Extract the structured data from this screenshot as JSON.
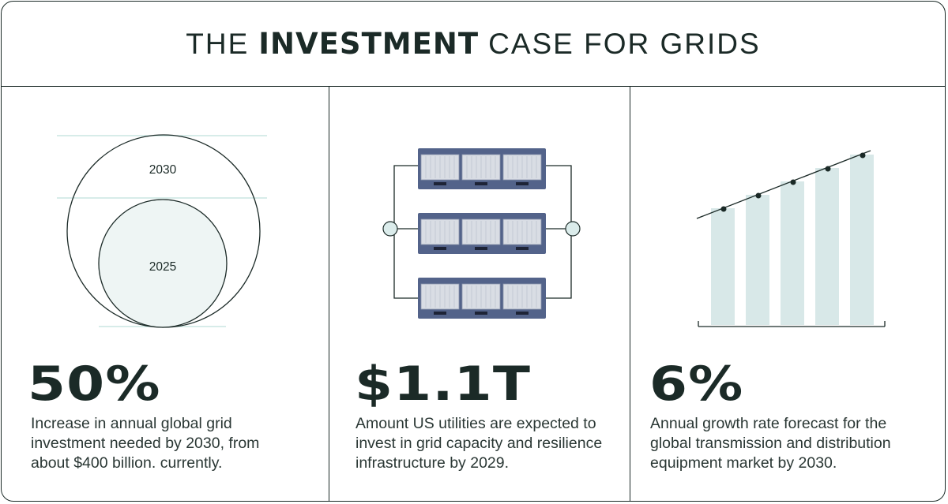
{
  "title": {
    "prefix": "THE",
    "emphasis": "INVESTMENT",
    "suffix": "CASE FOR GRIDS"
  },
  "panels": [
    {
      "stat": "50%",
      "caption": "Increase in annual global grid investment needed by 2030, from about $400 billion. currently.",
      "graphic": {
        "outer_label": "2030",
        "inner_label": "2025"
      }
    },
    {
      "stat": "$1.1T",
      "caption": "Amount US utilities are expected to invest in grid capacity and resilience infrastructure by 2029.",
      "graphic": {
        "rows": 3,
        "units_per_row": 3
      }
    },
    {
      "stat": "6%",
      "caption": "Annual growth rate forecast for the global transmission and distribution equipment market by 2030.",
      "graphic": {
        "bars": 5
      }
    }
  ],
  "colors": {
    "ink": "#1b2a27",
    "pale_teal": "#d8e8e8",
    "line_teal": "#bfe0dc",
    "panel_blue": "#4f5f86"
  }
}
